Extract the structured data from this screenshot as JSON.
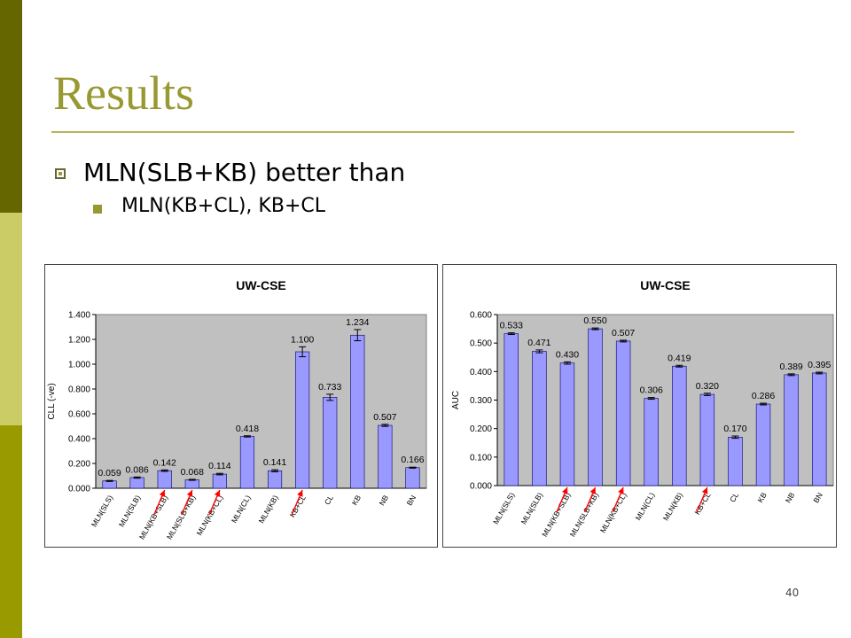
{
  "slide": {
    "title": "Results",
    "bullet1": "MLN(SLB+KB) better than",
    "bullet2": "MLN(KB+CL), KB+CL",
    "page_number": "40"
  },
  "colors": {
    "title": "#999933",
    "sidebar_dark": "#666600",
    "sidebar_light": "#cccc66",
    "sidebar_mid": "#999900",
    "bar_fill": "#9999ff",
    "plot_bg": "#c0c0c0",
    "arrow": "#ff0000"
  },
  "chart_data": [
    {
      "type": "bar",
      "title": "UW-CSE",
      "xlabel": "",
      "ylabel": "CLL (-ve)",
      "ylim": [
        0,
        1.4
      ],
      "yticks": [
        "0.000",
        "0.200",
        "0.400",
        "0.600",
        "0.800",
        "1.000",
        "1.200",
        "1.400"
      ],
      "categories": [
        "MLN(SLS)",
        "MLN(SLB)",
        "MLN(KB+SLB)",
        "MLN(SLB+KB)",
        "MLN(KB+CL)",
        "MLN(CL)",
        "MLN(KB)",
        "KB+CL",
        "CL",
        "KB",
        "NB",
        "BN"
      ],
      "values": [
        0.059,
        0.086,
        0.142,
        0.068,
        0.114,
        0.418,
        0.141,
        1.1,
        0.733,
        1.234,
        0.507,
        0.166
      ],
      "labels": [
        "0.059",
        "0.086",
        "0.142",
        "0.068",
        "0.114",
        "0.418",
        "0.141",
        "1.100",
        "0.733",
        "1.234",
        "0.507",
        "0.166"
      ],
      "errors": [
        0.004,
        0.005,
        0.006,
        0.004,
        0.006,
        0.005,
        0.008,
        0.04,
        0.025,
        0.045,
        0.008,
        0.004
      ],
      "arrows_at": [
        2,
        3,
        4,
        7
      ]
    },
    {
      "type": "bar",
      "title": "UW-CSE",
      "xlabel": "",
      "ylabel": "AUC",
      "ylim": [
        0,
        0.6
      ],
      "yticks": [
        "0.000",
        "0.100",
        "0.200",
        "0.300",
        "0.400",
        "0.500",
        "0.600"
      ],
      "categories": [
        "MLN(SLS)",
        "MLN(SLB)",
        "MLN(KB+SLB)",
        "MLN(SLB+KB)",
        "MLN(KB+CL)",
        "MLN(CL)",
        "MLN(KB)",
        "KB+CL",
        "CL",
        "KB",
        "NB",
        "BN"
      ],
      "values": [
        0.533,
        0.471,
        0.43,
        0.55,
        0.507,
        0.306,
        0.419,
        0.32,
        0.17,
        0.286,
        0.389,
        0.395
      ],
      "labels": [
        "0.533",
        "0.471",
        "0.430",
        "0.550",
        "0.507",
        "0.306",
        "0.419",
        "0.320",
        "0.170",
        "0.286",
        "0.389",
        "0.395"
      ],
      "errors": [
        0.003,
        0.005,
        0.004,
        0.003,
        0.003,
        0.003,
        0.003,
        0.004,
        0.004,
        0.003,
        0.003,
        0.003
      ],
      "arrows_at": [
        2,
        3,
        4,
        7
      ]
    }
  ]
}
